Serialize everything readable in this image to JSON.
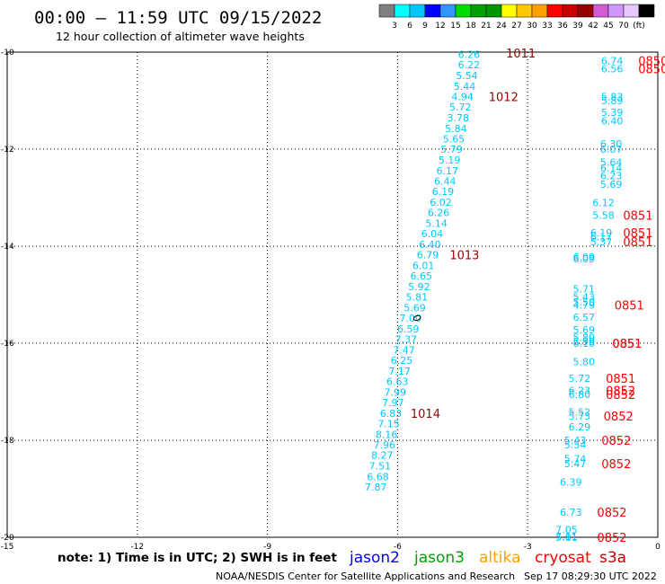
{
  "header": {
    "title": "00:00 – 11:59 UTC 09/15/2022",
    "subtitle": "12 hour collection of altimeter wave heights"
  },
  "colorbar": {
    "colors": [
      "#7f7f7f",
      "#00ffff",
      "#00c8ff",
      "#0000ff",
      "#3296ff",
      "#00dc00",
      "#00a000",
      "#009600",
      "#ffff00",
      "#ffc800",
      "#ffa000",
      "#ff0000",
      "#c80000",
      "#960000",
      "#d25ad2",
      "#d296ff",
      "#e6c8ff",
      "#000000"
    ],
    "labels": [
      "3",
      "6",
      "9",
      "12",
      "15",
      "18",
      "21",
      "24",
      "27",
      "30",
      "33",
      "36",
      "39",
      "42",
      "45",
      "70",
      "(ft)"
    ]
  },
  "footer": {
    "note": "note: 1) Time is in UTC; 2) SWH is in feet",
    "satellites": [
      {
        "name": "jason2",
        "color": "#0000ff"
      },
      {
        "name": "jason3",
        "color": "#00a000"
      },
      {
        "name": "altika",
        "color": "#ffa000"
      },
      {
        "name": "cryosat",
        "color": "#ff0000"
      },
      {
        "name": "s3a",
        "color": "#c80000"
      }
    ],
    "credit": "NOAA/NESDIS Center for Satellite Applications and Research",
    "timestamp": "Sep 17 08:29:30 UTC 2022"
  },
  "chart_data": {
    "type": "scatter",
    "xlim": [
      -15,
      0
    ],
    "ylim": [
      -20,
      -10
    ],
    "xticks": [
      "-15",
      "-12",
      "-9",
      "-6",
      "-3",
      "0"
    ],
    "yticks": [
      "-10",
      "-12",
      "-14",
      "-16",
      "-18",
      "-20"
    ],
    "grid": true,
    "series": [
      {
        "color": "#00c8ff",
        "points": [
          {
            "x": -4.1,
            "y": -10.05,
            "v": "6.26"
          },
          {
            "x": -4.1,
            "y": -10.26,
            "v": "6.22"
          },
          {
            "x": -4.15,
            "y": -10.48,
            "v": "5.54"
          },
          {
            "x": -4.2,
            "y": -10.7,
            "v": "5.44"
          },
          {
            "x": -4.25,
            "y": -10.92,
            "v": "4.94"
          },
          {
            "x": -4.3,
            "y": -11.13,
            "v": "5.72"
          },
          {
            "x": -4.35,
            "y": -11.35,
            "v": "3.78"
          },
          {
            "x": -4.4,
            "y": -11.57,
            "v": "5.84"
          },
          {
            "x": -4.45,
            "y": -11.79,
            "v": "5.65"
          },
          {
            "x": -4.5,
            "y": -12.0,
            "v": "5.79"
          },
          {
            "x": -4.55,
            "y": -12.22,
            "v": "5.19"
          },
          {
            "x": -4.6,
            "y": -12.44,
            "v": "6.17"
          },
          {
            "x": -4.65,
            "y": -12.66,
            "v": "6.44"
          },
          {
            "x": -4.7,
            "y": -12.87,
            "v": "6.19"
          },
          {
            "x": -4.75,
            "y": -13.09,
            "v": "6.02"
          },
          {
            "x": -4.8,
            "y": -13.31,
            "v": "6.26"
          },
          {
            "x": -4.85,
            "y": -13.53,
            "v": "5.14"
          },
          {
            "x": -4.95,
            "y": -13.74,
            "v": "6.04"
          },
          {
            "x": -5.0,
            "y": -13.96,
            "v": "6.40"
          },
          {
            "x": -5.05,
            "y": -14.18,
            "v": "6.79"
          },
          {
            "x": -5.15,
            "y": -14.4,
            "v": "6.01"
          },
          {
            "x": -5.2,
            "y": -14.61,
            "v": "6.65"
          },
          {
            "x": -5.25,
            "y": -14.83,
            "v": "5.92"
          },
          {
            "x": -5.3,
            "y": -15.05,
            "v": "5.81"
          },
          {
            "x": -5.35,
            "y": -15.27,
            "v": "5.69"
          },
          {
            "x": -5.45,
            "y": -15.48,
            "v": "7.00"
          },
          {
            "x": -5.5,
            "y": -15.7,
            "v": "6.59"
          },
          {
            "x": -5.55,
            "y": -15.92,
            "v": "7.37"
          },
          {
            "x": -5.6,
            "y": -16.14,
            "v": "7.47"
          },
          {
            "x": -5.65,
            "y": -16.35,
            "v": "6.25"
          },
          {
            "x": -5.7,
            "y": -16.57,
            "v": "7.17"
          },
          {
            "x": -5.75,
            "y": -16.79,
            "v": "6.63"
          },
          {
            "x": -5.8,
            "y": -17.01,
            "v": "7.99"
          },
          {
            "x": -5.85,
            "y": -17.22,
            "v": "7.97"
          },
          {
            "x": -5.9,
            "y": -17.44,
            "v": "6.83"
          },
          {
            "x": -5.95,
            "y": -17.66,
            "v": "7.15"
          },
          {
            "x": -6.0,
            "y": -17.88,
            "v": "8.16"
          },
          {
            "x": -6.05,
            "y": -18.09,
            "v": "7.96"
          },
          {
            "x": -6.1,
            "y": -18.31,
            "v": "8.27"
          },
          {
            "x": -6.15,
            "y": -18.53,
            "v": "7.51"
          },
          {
            "x": -6.2,
            "y": -18.75,
            "v": "6.68"
          },
          {
            "x": -6.25,
            "y": -18.96,
            "v": "7.87"
          }
        ]
      },
      {
        "color": "#00c8ff",
        "points": [
          {
            "x": -0.8,
            "y": -10.18,
            "v": "6.74"
          },
          {
            "x": -0.8,
            "y": -10.34,
            "v": "6.56"
          },
          {
            "x": -0.8,
            "y": -10.92,
            "v": "5.83"
          },
          {
            "x": -0.8,
            "y": -11.0,
            "v": "5.89"
          },
          {
            "x": -0.8,
            "y": -11.24,
            "v": "5.39"
          },
          {
            "x": -0.8,
            "y": -11.42,
            "v": "6.40"
          },
          {
            "x": -0.82,
            "y": -11.89,
            "v": "6.30"
          },
          {
            "x": -0.82,
            "y": -12.0,
            "v": "6.07"
          },
          {
            "x": -0.82,
            "y": -12.27,
            "v": "5.64"
          },
          {
            "x": -0.82,
            "y": -12.39,
            "v": "6.14"
          },
          {
            "x": -0.82,
            "y": -12.55,
            "v": "6.23"
          },
          {
            "x": -0.82,
            "y": -12.72,
            "v": "5.69"
          },
          {
            "x": -1.0,
            "y": -13.1,
            "v": "6.12"
          },
          {
            "x": -1.0,
            "y": -13.36,
            "v": "5.58"
          },
          {
            "x": -1.05,
            "y": -13.72,
            "v": "6.19"
          },
          {
            "x": -1.05,
            "y": -13.81,
            "v": "6.17"
          },
          {
            "x": -1.05,
            "y": -13.91,
            "v": "5.37"
          },
          {
            "x": -1.45,
            "y": -14.22,
            "v": "6.09"
          },
          {
            "x": -1.45,
            "y": -14.26,
            "v": "6.09"
          },
          {
            "x": -1.45,
            "y": -14.88,
            "v": "5.71"
          },
          {
            "x": -1.45,
            "y": -15.05,
            "v": "5.43"
          },
          {
            "x": -1.45,
            "y": -15.15,
            "v": "5.50"
          },
          {
            "x": -1.45,
            "y": -15.21,
            "v": "4.79"
          },
          {
            "x": -1.45,
            "y": -15.46,
            "v": "6.57"
          },
          {
            "x": -1.45,
            "y": -15.72,
            "v": "5.69"
          },
          {
            "x": -1.45,
            "y": -15.88,
            "v": "5.80"
          },
          {
            "x": -1.45,
            "y": -15.96,
            "v": "5.99"
          },
          {
            "x": -1.45,
            "y": -16.0,
            "v": "6.16"
          },
          {
            "x": -1.45,
            "y": -16.38,
            "v": "5.80"
          },
          {
            "x": -1.55,
            "y": -16.72,
            "v": "5.72"
          },
          {
            "x": -1.55,
            "y": -16.97,
            "v": "6.23"
          },
          {
            "x": -1.55,
            "y": -17.06,
            "v": "6.80"
          },
          {
            "x": -1.55,
            "y": -17.42,
            "v": "5.52"
          },
          {
            "x": -1.55,
            "y": -17.5,
            "v": "5.73"
          },
          {
            "x": -1.55,
            "y": -17.72,
            "v": "6.29"
          },
          {
            "x": -1.65,
            "y": -18.0,
            "v": "5.43"
          },
          {
            "x": -1.65,
            "y": -18.09,
            "v": "5.54"
          },
          {
            "x": -1.65,
            "y": -18.38,
            "v": "5.74"
          },
          {
            "x": -1.65,
            "y": -18.48,
            "v": "5.47"
          },
          {
            "x": -1.75,
            "y": -18.86,
            "v": "6.39"
          },
          {
            "x": -1.75,
            "y": -19.48,
            "v": "6.73"
          },
          {
            "x": -1.85,
            "y": -19.84,
            "v": "7.05"
          },
          {
            "x": -1.85,
            "y": -19.98,
            "v": "7.11"
          },
          {
            "x": -1.85,
            "y": -20.0,
            "v": "5.81"
          }
        ]
      }
    ],
    "annotations": [
      {
        "x": -3.5,
        "y": -10.02,
        "text": "1011",
        "color": "#960000"
      },
      {
        "x": -3.9,
        "y": -10.92,
        "text": "1012",
        "color": "#960000"
      },
      {
        "x": -4.8,
        "y": -14.18,
        "text": "1013",
        "color": "#960000"
      },
      {
        "x": -5.7,
        "y": -17.44,
        "text": "1014",
        "color": "#960000"
      },
      {
        "x": -0.45,
        "y": -10.18,
        "text": "0850",
        "color": "#ff0000"
      },
      {
        "x": -0.45,
        "y": -10.34,
        "text": "0850",
        "color": "#ff0000"
      },
      {
        "x": -0.8,
        "y": -13.36,
        "text": "0851",
        "color": "#ff0000"
      },
      {
        "x": -0.8,
        "y": -13.72,
        "text": "0851",
        "color": "#ff0000"
      },
      {
        "x": -0.8,
        "y": -13.91,
        "text": "0851",
        "color": "#ff0000"
      },
      {
        "x": -1.0,
        "y": -15.21,
        "text": "0851",
        "color": "#ff0000"
      },
      {
        "x": -1.05,
        "y": -16.0,
        "text": "0851",
        "color": "#ff0000"
      },
      {
        "x": -1.05,
        "y": -16.0,
        "text": "0851",
        "color": "#ff0000"
      },
      {
        "x": -1.2,
        "y": -16.72,
        "text": "0851",
        "color": "#ff0000"
      },
      {
        "x": -1.2,
        "y": -16.97,
        "text": "0852",
        "color": "#ff0000"
      },
      {
        "x": -1.2,
        "y": -17.06,
        "text": "0852",
        "color": "#ff0000"
      },
      {
        "x": -1.25,
        "y": -17.5,
        "text": "0852",
        "color": "#ff0000"
      },
      {
        "x": -1.3,
        "y": -18.0,
        "text": "0852",
        "color": "#ff0000"
      },
      {
        "x": -1.3,
        "y": -18.48,
        "text": "0852",
        "color": "#ff0000"
      },
      {
        "x": -1.4,
        "y": -19.48,
        "text": "0852",
        "color": "#ff0000"
      },
      {
        "x": -1.4,
        "y": -20.0,
        "text": "0852",
        "color": "#ff0000"
      }
    ],
    "markers": [
      {
        "x": -5.55,
        "y": -15.48,
        "symbol": "o"
      }
    ]
  }
}
